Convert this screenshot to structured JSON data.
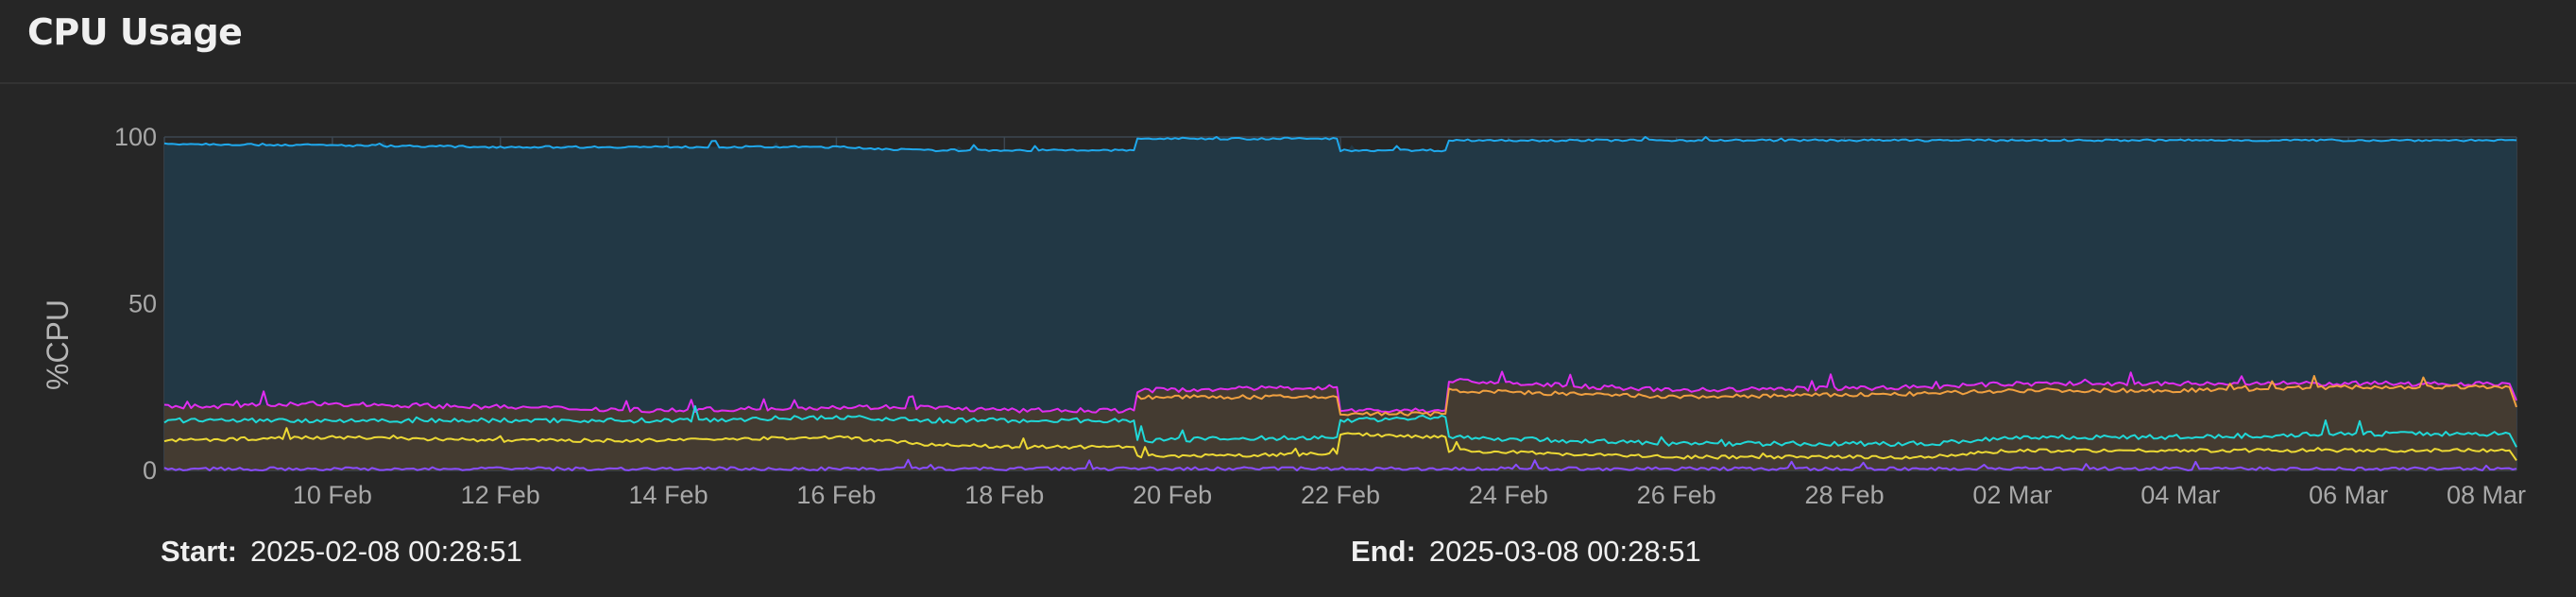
{
  "panel": {
    "title": "CPU Usage"
  },
  "range": {
    "start_label": "Start:",
    "start_value": "2025-02-08 00:28:51",
    "end_label": "End:",
    "end_value": "2025-03-08 00:28:51"
  },
  "colors": {
    "background": "#262626",
    "grid": "#3c4650",
    "total_line": "#1fa8ec",
    "total_fill": "#223845",
    "magenta": "#e02df0",
    "orange": "#f0a040",
    "cyan": "#20d8d8",
    "yellow": "#ecd834",
    "purple": "#8a4cff",
    "lower_fill": "#4a3c2e"
  },
  "chart_data": {
    "type": "area",
    "ylabel": "%CPU",
    "ylim": [
      0,
      100
    ],
    "yticks": [
      0,
      50,
      100
    ],
    "xlim": [
      "2025-02-08",
      "2025-03-08"
    ],
    "xticks": [
      {
        "date": "2025-02-10",
        "label": "10 Feb"
      },
      {
        "date": "2025-02-12",
        "label": "12 Feb"
      },
      {
        "date": "2025-02-14",
        "label": "14 Feb"
      },
      {
        "date": "2025-02-16",
        "label": "16 Feb"
      },
      {
        "date": "2025-02-18",
        "label": "18 Feb"
      },
      {
        "date": "2025-02-20",
        "label": "20 Feb"
      },
      {
        "date": "2025-02-22",
        "label": "22 Feb"
      },
      {
        "date": "2025-02-24",
        "label": "24 Feb"
      },
      {
        "date": "2025-02-26",
        "label": "26 Feb"
      },
      {
        "date": "2025-02-28",
        "label": "28 Feb"
      },
      {
        "date": "2025-03-02",
        "label": "02 Mar"
      },
      {
        "date": "2025-03-04",
        "label": "04 Mar"
      },
      {
        "date": "2025-03-06",
        "label": "06 Mar"
      },
      {
        "date": "2025-03-08",
        "label": "08 Mar"
      }
    ],
    "grid": true,
    "legend": "none",
    "series": [
      {
        "color_key": "total_line",
        "fill": "total_fill",
        "points": [
          [
            "2025-02-08",
            98
          ],
          [
            "2025-02-12",
            97
          ],
          [
            "2025-02-16",
            97
          ],
          [
            "2025-02-17",
            96
          ],
          [
            "2025-02-19",
            96
          ],
          [
            "2025-02-19 13:00",
            96
          ],
          [
            "2025-02-19 14:00",
            99.5
          ],
          [
            "2025-02-21 23:00",
            99.5
          ],
          [
            "2025-02-22",
            96
          ],
          [
            "2025-02-23 06:00",
            96
          ],
          [
            "2025-02-23 07:00",
            99
          ],
          [
            "2025-03-01",
            99
          ],
          [
            "2025-03-08",
            99
          ]
        ]
      },
      {
        "color_key": "magenta",
        "points": [
          [
            "2025-02-08",
            19
          ],
          [
            "2025-02-10",
            20
          ],
          [
            "2025-02-12",
            19
          ],
          [
            "2025-02-14",
            18
          ],
          [
            "2025-02-16",
            19
          ],
          [
            "2025-02-17",
            19
          ],
          [
            "2025-02-18",
            18
          ],
          [
            "2025-02-19 13:00",
            18
          ],
          [
            "2025-02-19 14:00",
            24
          ],
          [
            "2025-02-21 23:00",
            25
          ],
          [
            "2025-02-22",
            18
          ],
          [
            "2025-02-23 06:00",
            18
          ],
          [
            "2025-02-23 07:00",
            27
          ],
          [
            "2025-02-26",
            24
          ],
          [
            "2025-03-01",
            25
          ],
          [
            "2025-03-02",
            26
          ],
          [
            "2025-03-04",
            26
          ],
          [
            "2025-03-06",
            26
          ],
          [
            "2025-03-07 22:00",
            26
          ],
          [
            "2025-03-08",
            21
          ]
        ]
      },
      {
        "color_key": "orange",
        "points": [
          [
            "2025-02-19 14:00",
            22
          ],
          [
            "2025-02-21 23:00",
            22
          ],
          [
            "2025-02-22",
            17
          ],
          [
            "2025-02-23 06:00",
            17
          ],
          [
            "2025-02-23 07:00",
            24
          ],
          [
            "2025-02-26",
            22
          ],
          [
            "2025-03-01",
            23
          ],
          [
            "2025-03-02",
            24
          ],
          [
            "2025-03-04",
            24
          ],
          [
            "2025-03-06",
            25
          ],
          [
            "2025-03-07 22:00",
            25
          ],
          [
            "2025-03-08",
            19
          ]
        ]
      },
      {
        "color_key": "cyan",
        "points": [
          [
            "2025-02-08",
            15
          ],
          [
            "2025-02-10",
            15
          ],
          [
            "2025-02-12",
            15
          ],
          [
            "2025-02-14",
            15
          ],
          [
            "2025-02-16",
            16
          ],
          [
            "2025-02-17",
            15
          ],
          [
            "2025-02-18",
            15
          ],
          [
            "2025-02-19 13:00",
            15
          ],
          [
            "2025-02-19 14:00",
            9
          ],
          [
            "2025-02-21 23:00",
            10
          ],
          [
            "2025-02-22",
            15
          ],
          [
            "2025-02-23 06:00",
            16
          ],
          [
            "2025-02-23 07:00",
            10
          ],
          [
            "2025-02-26",
            8
          ],
          [
            "2025-03-01",
            8
          ],
          [
            "2025-03-02",
            10
          ],
          [
            "2025-03-04",
            10
          ],
          [
            "2025-03-06",
            11
          ],
          [
            "2025-03-07 22:00",
            11
          ],
          [
            "2025-03-08",
            7
          ]
        ]
      },
      {
        "color_key": "yellow",
        "points": [
          [
            "2025-02-08",
            9
          ],
          [
            "2025-02-10",
            10
          ],
          [
            "2025-02-12",
            9
          ],
          [
            "2025-02-14",
            9
          ],
          [
            "2025-02-16",
            10
          ],
          [
            "2025-02-17",
            8
          ],
          [
            "2025-02-18",
            7
          ],
          [
            "2025-02-19 13:00",
            7
          ],
          [
            "2025-02-19 14:00",
            4
          ],
          [
            "2025-02-21 23:00",
            5
          ],
          [
            "2025-02-22",
            11
          ],
          [
            "2025-02-23 06:00",
            10
          ],
          [
            "2025-02-23 07:00",
            6
          ],
          [
            "2025-02-26",
            4
          ],
          [
            "2025-03-01",
            4
          ],
          [
            "2025-03-02",
            6
          ],
          [
            "2025-03-04",
            6
          ],
          [
            "2025-03-06",
            6
          ],
          [
            "2025-03-07 22:00",
            6
          ],
          [
            "2025-03-08",
            3
          ]
        ]
      },
      {
        "color_key": "purple",
        "points": [
          [
            "2025-02-08",
            0.5
          ],
          [
            "2025-03-08",
            0.5
          ]
        ]
      }
    ]
  }
}
